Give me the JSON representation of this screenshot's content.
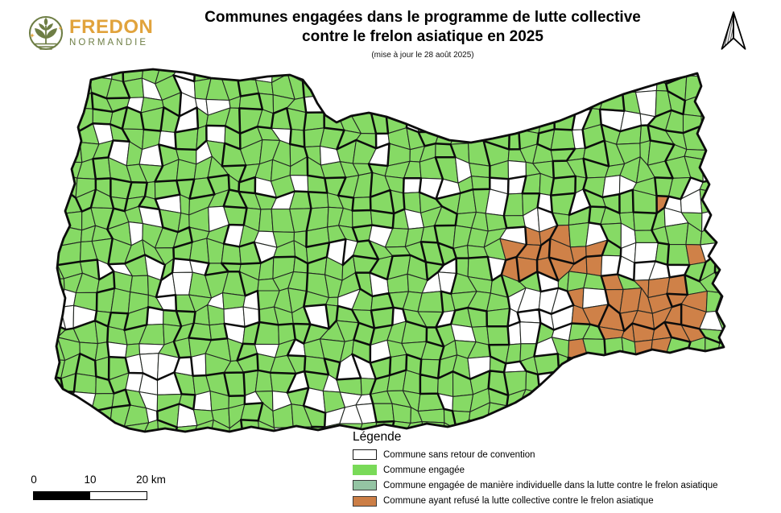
{
  "header": {
    "brand": "FREDON",
    "brand_sub": "NORMANDIE",
    "title_line1": "Communes engagées dans le programme de lutte collective",
    "title_line2": "contre le frelon asiatique en 2025",
    "subtitle": "(mise à jour le 28 août 2025)"
  },
  "legend": {
    "title": "Légende",
    "items": [
      {
        "label": "Commune sans retour de convention",
        "color": "#ffffff",
        "border": "#1a1a1a"
      },
      {
        "label": "Commune engagée",
        "color": "#79da58",
        "border": "#79da58"
      },
      {
        "label": "Commune engagée de manière individuelle dans la lutte contre le frelon asiatique",
        "color": "#94c4a3",
        "border": "#3a3a3a"
      },
      {
        "label": "Commune ayant refusé la lutte collective contre le frelon asiatique",
        "color": "#cc7e46",
        "border": "#3a3a3a"
      }
    ]
  },
  "scalebar": {
    "tick0": "0",
    "tick1": "10",
    "tick2": "20 km"
  },
  "map": {
    "colors": {
      "engaged": "#86da65",
      "no_convention": "#ffffff",
      "individual": "#94c4a3",
      "refused": "#cf8148",
      "commune_border": "#222622",
      "group_border": "#0c0c0c",
      "outline": "#0c0c0c",
      "sea": "#ffffff"
    },
    "logo_colors": {
      "gold": "#e1a33c",
      "olive": "#6e7e45"
    }
  }
}
